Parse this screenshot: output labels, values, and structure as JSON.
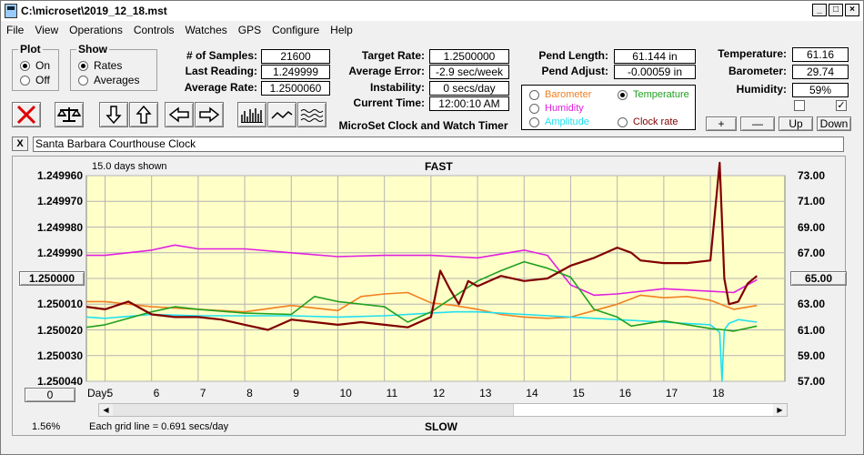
{
  "window": {
    "title": "C:\\microset\\2019_12_18.mst"
  },
  "menu": [
    "File",
    "View",
    "Operations",
    "Controls",
    "Watches",
    "GPS",
    "Configure",
    "Help"
  ],
  "plot_group": {
    "label": "Plot",
    "on": "On",
    "off": "Off",
    "selected": "On"
  },
  "show_group": {
    "label": "Show",
    "rates": "Rates",
    "averages": "Averages",
    "selected": "Rates"
  },
  "stats": {
    "samples_label": "# of Samples:",
    "samples": "21600",
    "last_label": "Last Reading:",
    "last": "1.249999",
    "avg_rate_label": "Average Rate:",
    "avg_rate": "1.2500060",
    "target_label": "Target Rate:",
    "target": "1.2500000",
    "avg_err_label": "Average Error:",
    "avg_err": "-2.9 sec/week",
    "instab_label": "Instability:",
    "instab": "0 secs/day",
    "curtime_label": "Current Time:",
    "curtime": "12:00:10 AM",
    "pendlen_label": "Pend Length:",
    "pendlen": "61.144 in",
    "pendadj_label": "Pend Adjust:",
    "pendadj": "-0.00059 in",
    "temp_label": "Temperature:",
    "temp": "61.16",
    "baro_label": "Barometer:",
    "baro": "29.74",
    "hum_label": "Humidity:",
    "hum": "59%"
  },
  "app_name": "MicroSet Clock and Watch Timer",
  "sensors": {
    "barometer": "Barometer",
    "temperature": "Temperature",
    "humidity": "Humidity",
    "amplitude": "Amplitude",
    "clock_rate": "Clock rate",
    "selected": "Temperature"
  },
  "adjust_buttons": {
    "plus": "+",
    "minus": "—",
    "up": "Up",
    "down": "Down"
  },
  "clock_name": "Santa Barbara Courthouse Clock",
  "chart": {
    "days_shown": "15.0 days shown",
    "top_label": "FAST",
    "bottom_label": "SLOW",
    "day_label": "Day:",
    "left_value_button": "1.250000",
    "right_value_button": "65.00",
    "bottom_left_button": "0",
    "percent": "1.56%",
    "grid_note": "Each grid line = 0.691 secs/day"
  },
  "colors": {
    "plot_bg": "#ffffc8",
    "rate": "#800000",
    "temperature": "#20a020",
    "humidity": "#e020e0",
    "barometer": "#f08020",
    "amplitude": "#20e0f0",
    "clock_rate": "#800000"
  },
  "chart_data": {
    "type": "line",
    "x_label": "Day:",
    "x_range": [
      4.6,
      19.6
    ],
    "x_ticks": [
      5,
      6,
      7,
      8,
      9,
      10,
      11,
      12,
      13,
      14,
      15,
      16,
      17,
      18
    ],
    "y_left_ticks": [
      "1.249960",
      "1.249970",
      "1.249980",
      "1.249990",
      "1.250000",
      "1.250010",
      "1.250020",
      "1.250030",
      "1.250040"
    ],
    "y_left_range": [
      1.25004,
      1.24996
    ],
    "y_right_ticks": [
      "73.00",
      "71.00",
      "69.00",
      "67.00",
      "65.00",
      "63.00",
      "61.00",
      "59.00",
      "57.00"
    ],
    "y_right_range": [
      57,
      73
    ],
    "series": [
      {
        "key": "rate",
        "axis": "left",
        "x": [
          4.6,
          5,
          5.5,
          6,
          6.5,
          7,
          7.5,
          8,
          8.5,
          9,
          9.5,
          10,
          10.5,
          11,
          11.5,
          12,
          12.2,
          12.4,
          12.6,
          12.8,
          13,
          13.5,
          14,
          14.5,
          15,
          15.5,
          16,
          16.3,
          16.5,
          17,
          17.5,
          18,
          18.2,
          18.3,
          18.4,
          18.6,
          18.8,
          19
        ],
        "y": [
          1.250011,
          1.250012,
          1.250009,
          1.250014,
          1.250015,
          1.250015,
          1.250016,
          1.250018,
          1.25002,
          1.250016,
          1.250017,
          1.250018,
          1.250017,
          1.250018,
          1.250019,
          1.250015,
          1.249997,
          1.250004,
          1.25001,
          1.250001,
          1.250003,
          1.249999,
          1.250001,
          1.25,
          1.249995,
          1.249992,
          1.249988,
          1.24999,
          1.249993,
          1.249994,
          1.249994,
          1.249993,
          1.249955,
          1.25,
          1.25001,
          1.250009,
          1.250002,
          1.249999
        ]
      },
      {
        "key": "humidity",
        "axis": "right",
        "x": [
          4.6,
          5,
          6,
          6.5,
          7,
          8,
          9,
          10,
          11,
          12,
          13,
          14,
          14.5,
          15,
          15.5,
          16,
          17,
          18,
          18.5,
          19
        ],
        "y": [
          66.8,
          66.8,
          67.2,
          67.6,
          67.3,
          67.3,
          67.0,
          66.7,
          66.8,
          66.8,
          66.6,
          67.2,
          66.8,
          64.5,
          63.7,
          63.8,
          64.2,
          64.0,
          63.9,
          64.9
        ]
      },
      {
        "key": "temperature",
        "axis": "right",
        "x": [
          4.6,
          5,
          6,
          6.5,
          7,
          8,
          9,
          9.5,
          10,
          11,
          11.5,
          12,
          12.5,
          13,
          13.5,
          14,
          14.5,
          15,
          15.5,
          16,
          16.3,
          17,
          18,
          18.3,
          18.5,
          19
        ],
        "y": [
          61.2,
          61.4,
          62.4,
          62.8,
          62.6,
          62.3,
          62.2,
          63.6,
          63.2,
          62.8,
          61.6,
          62.4,
          63.6,
          64.8,
          65.6,
          66.3,
          65.8,
          65.1,
          62.6,
          62.0,
          61.3,
          61.7,
          61.1,
          61.0,
          60.9,
          61.3
        ]
      },
      {
        "key": "barometer",
        "axis": "right",
        "x": [
          4.6,
          5,
          6,
          7,
          8,
          9,
          10,
          10.5,
          11,
          11.5,
          12,
          12.5,
          13,
          13.5,
          14,
          14.5,
          15,
          15.5,
          16,
          16.5,
          17,
          17.5,
          18,
          18.5,
          19
        ],
        "y": [
          63.2,
          63.2,
          62.8,
          62.6,
          62.4,
          62.9,
          62.5,
          63.6,
          63.8,
          63.9,
          63.1,
          62.9,
          62.6,
          62.2,
          62.0,
          61.9,
          62.0,
          62.5,
          63.0,
          63.7,
          63.5,
          63.6,
          63.3,
          62.6,
          62.9
        ]
      },
      {
        "key": "amplitude",
        "axis": "right",
        "x": [
          4.6,
          5,
          6,
          7,
          8,
          9,
          10,
          11,
          12,
          12.5,
          13,
          14,
          15,
          16,
          17,
          18,
          18.2,
          18.25,
          18.3,
          18.4,
          18.6,
          19
        ],
        "y": [
          62.0,
          61.9,
          62.2,
          62.1,
          62.1,
          62.1,
          62.0,
          62.1,
          62.3,
          62.4,
          62.4,
          62.2,
          62.0,
          61.8,
          61.6,
          61.4,
          60.8,
          57.0,
          61.0,
          61.5,
          61.8,
          61.6
        ]
      }
    ]
  }
}
